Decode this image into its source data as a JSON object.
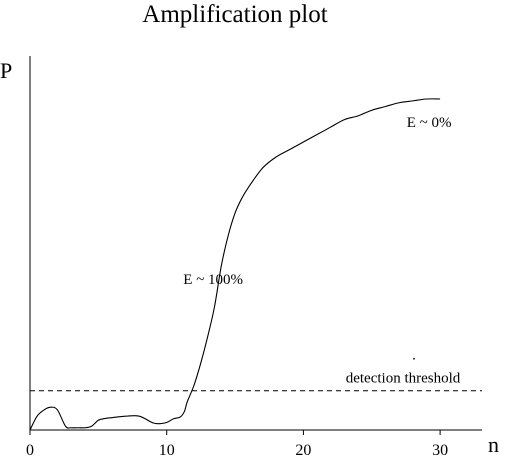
{
  "chart_data": {
    "type": "line",
    "title": "Amplification plot",
    "xlabel": "n",
    "ylabel": "P",
    "xlim": [
      0,
      33
    ],
    "ylim": [
      0,
      1
    ],
    "xticks": [
      0,
      10,
      20,
      30
    ],
    "xtick_labels": [
      "0",
      "10",
      "20",
      "30"
    ],
    "grid": false,
    "legend": "none",
    "series": [
      {
        "x": [
          0,
          0.5,
          1,
          1.5,
          2,
          2.6,
          3,
          3.5,
          4,
          4.5,
          5,
          5.5,
          6,
          7,
          8,
          9,
          9.5,
          10,
          10.5,
          11,
          11.3,
          11.5,
          12,
          12.5,
          13,
          13.5,
          14,
          14.5,
          15,
          15.5,
          16,
          17,
          18,
          19,
          20,
          21,
          22,
          23,
          24,
          25,
          26,
          27,
          28,
          29,
          30
        ],
        "y": [
          0.0,
          0.036,
          0.053,
          0.061,
          0.054,
          0.01,
          0.006,
          0.006,
          0.006,
          0.01,
          0.026,
          0.031,
          0.033,
          0.037,
          0.037,
          0.019,
          0.017,
          0.02,
          0.03,
          0.035,
          0.05,
          0.075,
          0.12,
          0.18,
          0.25,
          0.33,
          0.44,
          0.52,
          0.58,
          0.62,
          0.65,
          0.7,
          0.73,
          0.75,
          0.77,
          0.79,
          0.81,
          0.83,
          0.84,
          0.855,
          0.865,
          0.875,
          0.88,
          0.885,
          0.885
        ]
      }
    ],
    "threshold": {
      "value": 0.105,
      "label": "detection threshold",
      "style": "dashed"
    },
    "annotations": [
      {
        "text": "E ~ 100%",
        "x": 13.4,
        "y": 0.39
      },
      {
        "text": "E ~ 0%",
        "x": 29.2,
        "y": 0.81
      }
    ]
  }
}
